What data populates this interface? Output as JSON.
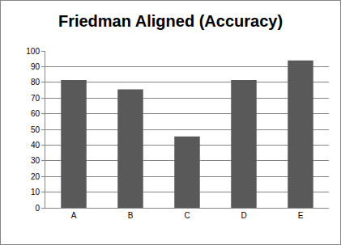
{
  "chart_data": {
    "type": "bar",
    "title": "Friedman Aligned (Accuracy)",
    "categories": [
      "A",
      "B",
      "C",
      "D",
      "E"
    ],
    "values": [
      81.5,
      75.5,
      45.5,
      81.5,
      94
    ],
    "color": "#595959",
    "ylim": [
      0,
      100
    ],
    "yticks": [
      0,
      10,
      20,
      30,
      40,
      50,
      60,
      70,
      80,
      90,
      100
    ],
    "grid": true
  }
}
